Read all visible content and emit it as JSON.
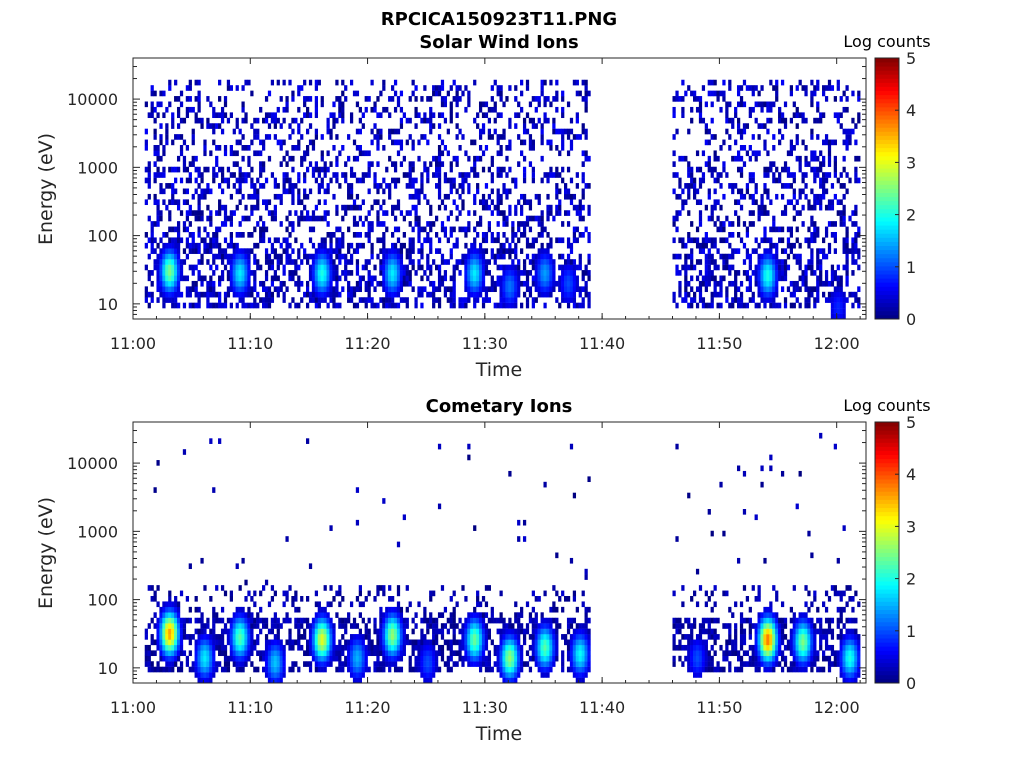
{
  "figure": {
    "title": "RPCICA150923T11.PNG"
  },
  "colors": {
    "background": "#ffffff",
    "axis": "#262626",
    "colormap": "jet"
  },
  "chart_data": [
    {
      "type": "heatmap",
      "title": "Solar Wind Ions",
      "xlabel": "Time",
      "ylabel": "Energy (eV)",
      "x_range": [
        "11:00:00",
        "12:02:30"
      ],
      "x_ticks": [
        "11:00",
        "11:10",
        "11:20",
        "11:30",
        "11:40",
        "11:50",
        "12:00"
      ],
      "y_scale": "log",
      "y_range": [
        6,
        40000
      ],
      "y_ticks": [
        10,
        100,
        1000,
        10000
      ],
      "y_tick_labels": [
        "10",
        "100",
        "1000",
        "10000"
      ],
      "colorbar": {
        "label": "Log counts",
        "range": [
          0,
          5
        ],
        "ticks": [
          "0",
          "1",
          "2",
          "3",
          "4",
          "5"
        ]
      },
      "data_intervals": [
        [
          "11:01",
          "11:39"
        ],
        [
          "11:46",
          "12:02"
        ]
      ],
      "sparse_background": {
        "energy_range_eV": [
          8,
          20000
        ],
        "log_counts_range": [
          0,
          0.6
        ],
        "note": ""
      },
      "peaks": [
        {
          "time": "11:03",
          "energy_eV": 30,
          "log_counts": 2.5
        },
        {
          "time": "11:09",
          "energy_eV": 28,
          "log_counts": 1.8
        },
        {
          "time": "11:16",
          "energy_eV": 28,
          "log_counts": 2.0
        },
        {
          "time": "11:22",
          "energy_eV": 28,
          "log_counts": 1.8
        },
        {
          "time": "11:29",
          "energy_eV": 28,
          "log_counts": 1.8
        },
        {
          "time": "11:32",
          "energy_eV": 18,
          "log_counts": 1.2
        },
        {
          "time": "11:35",
          "energy_eV": 28,
          "log_counts": 1.4
        },
        {
          "time": "11:37",
          "energy_eV": 20,
          "log_counts": 1.0
        },
        {
          "time": "11:54",
          "energy_eV": 26,
          "log_counts": 2.0
        },
        {
          "time": "12:00",
          "energy_eV": 9,
          "log_counts": 0.8
        }
      ]
    },
    {
      "type": "heatmap",
      "title": "Cometary Ions",
      "xlabel": "Time",
      "ylabel": "Energy (eV)",
      "x_range": [
        "11:00:00",
        "12:02:30"
      ],
      "x_ticks": [
        "11:00",
        "11:10",
        "11:20",
        "11:30",
        "11:40",
        "11:50",
        "12:00"
      ],
      "y_scale": "log",
      "y_range": [
        6,
        40000
      ],
      "y_ticks": [
        10,
        100,
        1000,
        10000
      ],
      "y_tick_labels": [
        "10",
        "100",
        "1000",
        "10000"
      ],
      "colorbar": {
        "label": "Log counts",
        "range": [
          0,
          5
        ],
        "ticks": [
          "0",
          "1",
          "2",
          "3",
          "4",
          "5"
        ]
      },
      "data_intervals": [
        [
          "11:01",
          "11:39"
        ],
        [
          "11:46",
          "12:02"
        ]
      ],
      "sparse_background": {
        "energy_range_eV": [
          8,
          30000
        ],
        "log_counts_range": [
          0,
          0.4
        ],
        "note": ""
      },
      "peaks": [
        {
          "time": "11:03",
          "energy_eV": 32,
          "log_counts": 3.6
        },
        {
          "time": "11:06",
          "energy_eV": 14,
          "log_counts": 1.8
        },
        {
          "time": "11:09",
          "energy_eV": 28,
          "log_counts": 2.3
        },
        {
          "time": "11:12",
          "energy_eV": 12,
          "log_counts": 1.6
        },
        {
          "time": "11:16",
          "energy_eV": 26,
          "log_counts": 3.0
        },
        {
          "time": "11:19",
          "energy_eV": 14,
          "log_counts": 1.5
        },
        {
          "time": "11:22",
          "energy_eV": 30,
          "log_counts": 2.6
        },
        {
          "time": "11:25",
          "energy_eV": 12,
          "log_counts": 1.0
        },
        {
          "time": "11:29",
          "energy_eV": 26,
          "log_counts": 2.4
        },
        {
          "time": "11:32",
          "energy_eV": 14,
          "log_counts": 2.6
        },
        {
          "time": "11:35",
          "energy_eV": 20,
          "log_counts": 2.3
        },
        {
          "time": "11:38",
          "energy_eV": 16,
          "log_counts": 1.9
        },
        {
          "time": "11:48",
          "energy_eV": 14,
          "log_counts": 1.0
        },
        {
          "time": "11:54",
          "energy_eV": 26,
          "log_counts": 3.8
        },
        {
          "time": "11:57",
          "energy_eV": 24,
          "log_counts": 2.5
        },
        {
          "time": "12:01",
          "energy_eV": 14,
          "log_counts": 2.0
        }
      ]
    }
  ]
}
